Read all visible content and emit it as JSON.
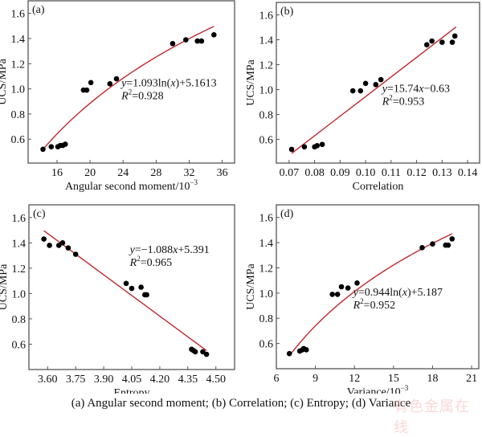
{
  "caption": "(a) Angular second moment; (b) Correlation; (c) Entropy; (d) Variance",
  "watermark": "有色金属在线",
  "colors": {
    "points": "#000000",
    "fit_line": "#c0272d",
    "axes": "#555555"
  },
  "chart_data": [
    {
      "type": "scatter",
      "panel": "(a)",
      "xlabel": "Angular second moment/10",
      "xlabel_sup": "−3",
      "ylabel": "UCS/MPa",
      "xlim": [
        12.5,
        37.5
      ],
      "ylim": [
        0.41,
        1.7
      ],
      "xticks": [
        16,
        20,
        24,
        28,
        32,
        36
      ],
      "xtick_labels": [
        "16",
        "20",
        "24",
        "28",
        "32",
        "36"
      ],
      "yticks": [
        0.6,
        0.8,
        1.0,
        1.2,
        1.4,
        1.6
      ],
      "ytick_labels": [
        "0.6",
        "0.8",
        "1.0",
        "1.2",
        "1.4",
        "1.6"
      ],
      "x": [
        14.3,
        15.3,
        16.1,
        16.4,
        16.7,
        17.0,
        19.2,
        19.6,
        20.1,
        22.4,
        23.2,
        30.0,
        31.6,
        33.0,
        33.5,
        35.0
      ],
      "y": [
        0.52,
        0.54,
        0.54,
        0.55,
        0.55,
        0.56,
        0.99,
        0.99,
        1.05,
        1.04,
        1.08,
        1.36,
        1.39,
        1.38,
        1.38,
        1.43
      ],
      "fit": {
        "kind": "log",
        "a": 1.093,
        "b": 5.1613,
        "x_scale": 0.001,
        "x_range": [
          14.5,
          35.0
        ]
      },
      "equation": {
        "y": "y",
        "rhs": "=1.093ln(",
        "x": "x",
        "tail": ")+5.1613"
      },
      "r2": {
        "R": "R",
        "sup": "2",
        "rhs": "=0.928"
      },
      "equation_anchor": [
        23.8,
        1.02
      ]
    },
    {
      "type": "scatter",
      "panel": "(b)",
      "xlabel": "Correlation",
      "xlabel_sup": "",
      "ylabel": "UCS/MPa",
      "xlim": [
        0.065,
        0.1447
      ],
      "ylim": [
        0.41,
        1.7
      ],
      "xticks": [
        0.07,
        0.08,
        0.09,
        0.1,
        0.11,
        0.12,
        0.13,
        0.14
      ],
      "xtick_labels": [
        "0.07",
        "0.08",
        "0.09",
        "0.10",
        "0.11",
        "0.12",
        "0.13",
        "0.14"
      ],
      "yticks": [
        0.6,
        0.8,
        1.0,
        1.2,
        1.4,
        1.6
      ],
      "ytick_labels": [
        "0.6",
        "0.8",
        "1.0",
        "1.2",
        "1.4",
        "1.6"
      ],
      "x": [
        0.071,
        0.076,
        0.08,
        0.081,
        0.083,
        0.095,
        0.098,
        0.1,
        0.104,
        0.106,
        0.124,
        0.126,
        0.13,
        0.134,
        0.135
      ],
      "y": [
        0.52,
        0.54,
        0.54,
        0.55,
        0.56,
        0.99,
        0.99,
        1.05,
        1.04,
        1.08,
        1.36,
        1.39,
        1.38,
        1.38,
        1.43
      ],
      "fit": {
        "kind": "linear",
        "a": 15.74,
        "b": -0.63,
        "x_range": [
          0.071,
          0.1355
        ]
      },
      "equation": {
        "y": "y",
        "rhs": "=15.74",
        "x": "x",
        "tail": "−0.63"
      },
      "r2": {
        "R": "R",
        "sup": "2",
        "rhs": "=0.953"
      },
      "equation_anchor": [
        0.1065,
        0.98
      ]
    },
    {
      "type": "scatter",
      "panel": "(c)",
      "xlabel": "Entropy",
      "xlabel_sup": "",
      "ylabel": "UCS/MPa",
      "xlim": [
        3.5,
        4.6
      ],
      "ylim": [
        0.4,
        1.7
      ],
      "xticks": [
        3.6,
        3.75,
        3.9,
        4.05,
        4.2,
        4.35,
        4.5
      ],
      "xtick_labels": [
        "3.60",
        "3.75",
        "3.90",
        "4.05",
        "4.20",
        "4.35",
        "4.50"
      ],
      "yticks": [
        0.6,
        0.8,
        1.0,
        1.2,
        1.4,
        1.6
      ],
      "ytick_labels": [
        "0.6",
        "0.8",
        "1.0",
        "1.2",
        "1.4",
        "1.6"
      ],
      "x": [
        3.58,
        3.61,
        3.66,
        3.68,
        3.71,
        3.75,
        4.02,
        4.05,
        4.1,
        4.12,
        4.13,
        4.37,
        4.38,
        4.39,
        4.43,
        4.45
      ],
      "y": [
        1.43,
        1.38,
        1.38,
        1.4,
        1.36,
        1.31,
        1.08,
        1.04,
        1.05,
        0.99,
        0.99,
        0.56,
        0.55,
        0.54,
        0.54,
        0.52
      ],
      "fit": {
        "kind": "linear",
        "a": -1.088,
        "b": 5.391,
        "x_range": [
          3.58,
          4.45
        ]
      },
      "equation": {
        "y": "y",
        "rhs": "=−1.088",
        "x": "x",
        "tail": "+5.391"
      },
      "r2": {
        "R": "R",
        "sup": "2",
        "rhs": "=0.965"
      },
      "equation_anchor": [
        4.04,
        1.32
      ]
    },
    {
      "type": "scatter",
      "panel": "(d)",
      "xlabel": "Variance/10",
      "xlabel_sup": "−3",
      "ylabel": "UCS/MPa",
      "xlim": [
        6,
        21.55
      ],
      "ylim": [
        0.4,
        1.7
      ],
      "xticks": [
        6,
        9,
        12,
        15,
        18,
        21
      ],
      "xtick_labels": [
        "6",
        "9",
        "12",
        "15",
        "18",
        "21"
      ],
      "yticks": [
        0.6,
        0.8,
        1.0,
        1.2,
        1.4,
        1.6
      ],
      "ytick_labels": [
        "0.6",
        "0.8",
        "1.0",
        "1.2",
        "1.4",
        "1.6"
      ],
      "x": [
        7.0,
        7.8,
        8.0,
        8.1,
        8.3,
        10.3,
        10.7,
        11.0,
        11.5,
        12.2,
        17.2,
        18.0,
        19.0,
        19.2,
        19.5
      ],
      "y": [
        0.52,
        0.54,
        0.55,
        0.56,
        0.55,
        0.99,
        0.99,
        1.05,
        1.04,
        1.08,
        1.36,
        1.39,
        1.38,
        1.38,
        1.43
      ],
      "fit": {
        "kind": "log",
        "a": 0.944,
        "b": 5.187,
        "x_scale": 0.001,
        "x_range": [
          7.0,
          19.5
        ]
      },
      "equation": {
        "y": "y",
        "rhs": "=0.944ln(",
        "x": "x",
        "tail": ")+5.187"
      },
      "r2": {
        "R": "R",
        "sup": "2",
        "rhs": "=0.952"
      },
      "equation_anchor": [
        11.9,
        0.98
      ]
    }
  ]
}
